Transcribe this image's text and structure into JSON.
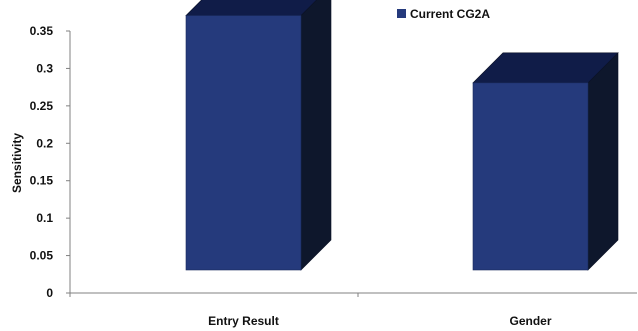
{
  "chart_data": {
    "type": "bar",
    "categories": [
      "Entry Result",
      "Gender"
    ],
    "series": [
      {
        "name": "Current CG2A",
        "values": [
          0.34,
          0.25
        ]
      }
    ],
    "ylabel": "Sensitivity",
    "xlabel": "",
    "ylim": [
      0,
      0.35
    ],
    "yticks": [
      "0",
      "0.05",
      "0.1",
      "0.15",
      "0.2",
      "0.25",
      "0.3",
      "0.35"
    ],
    "grid": false,
    "legend_position": "top-right",
    "style": "3d",
    "colors": {
      "front": "#253A7C",
      "top": "#101C48",
      "side": "#0E172C"
    }
  }
}
